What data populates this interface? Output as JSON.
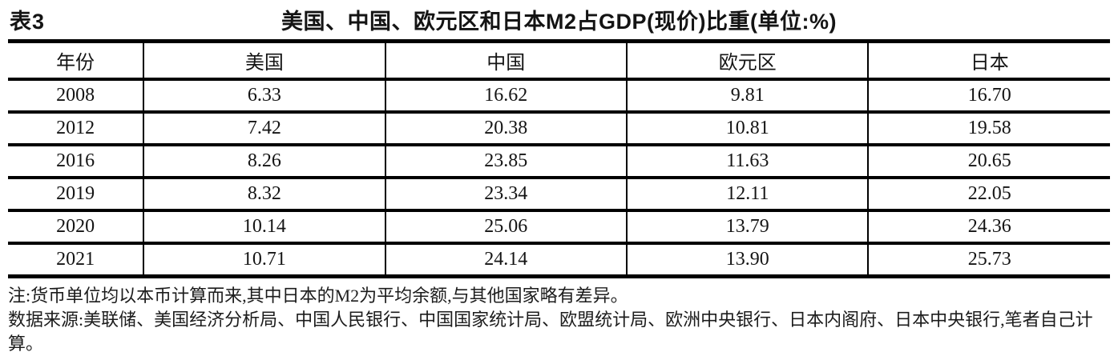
{
  "title": {
    "table_label": "表3",
    "main": "美国、中国、欧元区和日本M2占GDP(现价)比重(单位:%)"
  },
  "chart_data": {
    "type": "table",
    "columns": [
      "年份",
      "美国",
      "中国",
      "欧元区",
      "日本"
    ],
    "rows": [
      [
        "2008",
        "6.33",
        "16.62",
        "9.81",
        "16.70"
      ],
      [
        "2012",
        "7.42",
        "20.38",
        "10.81",
        "19.58"
      ],
      [
        "2016",
        "8.26",
        "23.85",
        "11.63",
        "20.65"
      ],
      [
        "2019",
        "8.32",
        "23.34",
        "12.11",
        "22.05"
      ],
      [
        "2020",
        "10.14",
        "25.06",
        "13.79",
        "24.36"
      ],
      [
        "2021",
        "10.71",
        "24.14",
        "13.90",
        "25.73"
      ]
    ]
  },
  "notes": {
    "note": "注:货币单位均以本币计算而来,其中日本的M2为平均余额,与其他国家略有差异。",
    "source": "数据来源:美联储、美国经济分析局、中国人民银行、中国国家统计局、欧盟统计局、欧洲中央银行、日本内阁府、日本中央银行,笔者自己计算。"
  },
  "colors": {
    "text": "#141414",
    "rule": "#000000",
    "background": "#ffffff"
  }
}
